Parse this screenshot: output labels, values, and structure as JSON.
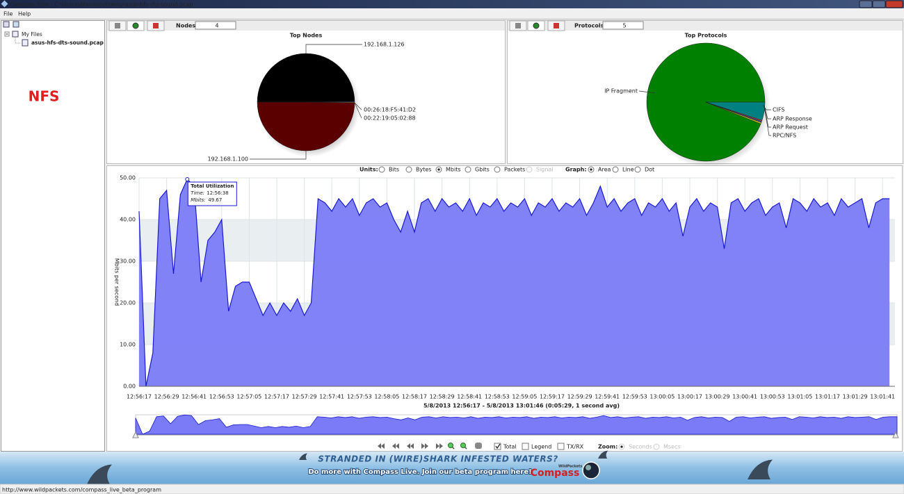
{
  "window": {
    "title": "Compass Free - C:\\Users\\Atanasovi\\temp\\asus-hfs-dts-sound.pcap"
  },
  "menu": [
    "File",
    "Help"
  ],
  "sidebar": {
    "root": "My Files",
    "file": "asus-hfs-dts-sound.pcap",
    "label": "NFS"
  },
  "nodes_panel": {
    "count_label": "Nodes:",
    "count": 4,
    "pie": {
      "type": "pie",
      "title": "Top Nodes",
      "categories": [
        "192.168.1.126",
        "00:26:18:F5:41:D2",
        "00:22:19:05:02:88",
        "192.168.1.100"
      ],
      "values": [
        49.8,
        0.2,
        0.2,
        49.8
      ],
      "colors": [
        "#000000",
        "#3c6bd6",
        "#d6b63c",
        "#5a0000"
      ]
    }
  },
  "protocols_panel": {
    "count_label": "Protocols:",
    "count": 5,
    "pie": {
      "type": "pie",
      "title": "Top Protocols",
      "categories": [
        "IP Fragment",
        "CIFS",
        "ARP Response",
        "ARP Request",
        "RPC/NFS"
      ],
      "values": [
        94,
        5,
        0.3,
        0.3,
        0.4
      ],
      "colors": [
        "#008000",
        "#008080",
        "#c04040",
        "#4040c0",
        "#c0c000"
      ]
    }
  },
  "units": {
    "label": "Units:",
    "options": [
      "Bits",
      "Bytes",
      "Mbits",
      "Gbits",
      "Packets",
      "Signal"
    ],
    "selected": 2,
    "disabled": [
      5
    ]
  },
  "graph_mode": {
    "label": "Graph:",
    "options": [
      "Area",
      "Line",
      "Dot"
    ],
    "selected": 0
  },
  "utilization": {
    "type": "area",
    "ylabel": "Mbits per second",
    "subtitle": "5/8/2013 12:56:17 - 5/8/2013 13:01:46 (0:05:29, 1 second avg)",
    "ylim": [
      0,
      50
    ],
    "yticks": [
      {
        "value": 0,
        "label": "0.00"
      },
      {
        "value": 10,
        "label": "10.00"
      },
      {
        "value": 20,
        "label": "20.00"
      },
      {
        "value": 30,
        "label": "30.00"
      },
      {
        "value": 40,
        "label": "40.00"
      },
      {
        "value": 50,
        "label": "50.00"
      }
    ],
    "categories": [
      "12:56:17",
      "12:56:29",
      "12:56:41",
      "12:56:53",
      "12:57:05",
      "12:57:17",
      "12:57:29",
      "12:57:41",
      "12:57:53",
      "12:58:05",
      "12:58:17",
      "12:58:29",
      "12:58:41",
      "12:58:53",
      "12:59:05",
      "12:59:17",
      "12:59:29",
      "12:59:41",
      "12:59:53",
      "13:00:05",
      "13:00:17",
      "13:00:29",
      "13:00:41",
      "13:00:53",
      "13:01:05",
      "13:01:17",
      "13:01:29",
      "13:01:41"
    ],
    "values": [
      42,
      0,
      8,
      45,
      47,
      27,
      46,
      49.67,
      48,
      25,
      35,
      37,
      40,
      18,
      24,
      25,
      25,
      21,
      17,
      20,
      17,
      20,
      18,
      21,
      17,
      20,
      45,
      44,
      42,
      45,
      43,
      45,
      41,
      44,
      45,
      43,
      44,
      40,
      37,
      42,
      37,
      44,
      45,
      42,
      45,
      43,
      44,
      42,
      45,
      41,
      44,
      43,
      45,
      42,
      44,
      43,
      45,
      41,
      44,
      43,
      45,
      42,
      44,
      43,
      45,
      41,
      44,
      48,
      43,
      45,
      42,
      44,
      45,
      41,
      44,
      43,
      45,
      42,
      44,
      36,
      43,
      45,
      42,
      44,
      43,
      33,
      44,
      45,
      42,
      44,
      45,
      41,
      43,
      44,
      38,
      45,
      44,
      42,
      45,
      43,
      44,
      41,
      45,
      43,
      44,
      45,
      38,
      44,
      45,
      45
    ],
    "color": "#7b7bf7",
    "line_color": "#1a1ad0",
    "grid": true
  },
  "tooltip": {
    "title": "Total Utilization",
    "time_label": "Time:",
    "time": "12:56:38",
    "value_label": "Mbits:",
    "value": 49.67
  },
  "bottom_toolbar": {
    "checks": [
      {
        "label": "Total",
        "checked": true
      },
      {
        "label": "Legend",
        "checked": false
      },
      {
        "label": "TX/RX",
        "checked": false
      }
    ],
    "zoom": {
      "label": "Zoom:",
      "options": [
        "Seconds",
        "Msecs"
      ]
    }
  },
  "banner": {
    "headline": "STRANDED IN (WIRE)SHARK INFESTED WATERS?",
    "tagline": "Do more with Compass Live. Join our beta program here!",
    "brand_small": "WildPackets",
    "brand": "Compass"
  },
  "status": "http://www.wildpackets.com/compass_live_beta_program"
}
